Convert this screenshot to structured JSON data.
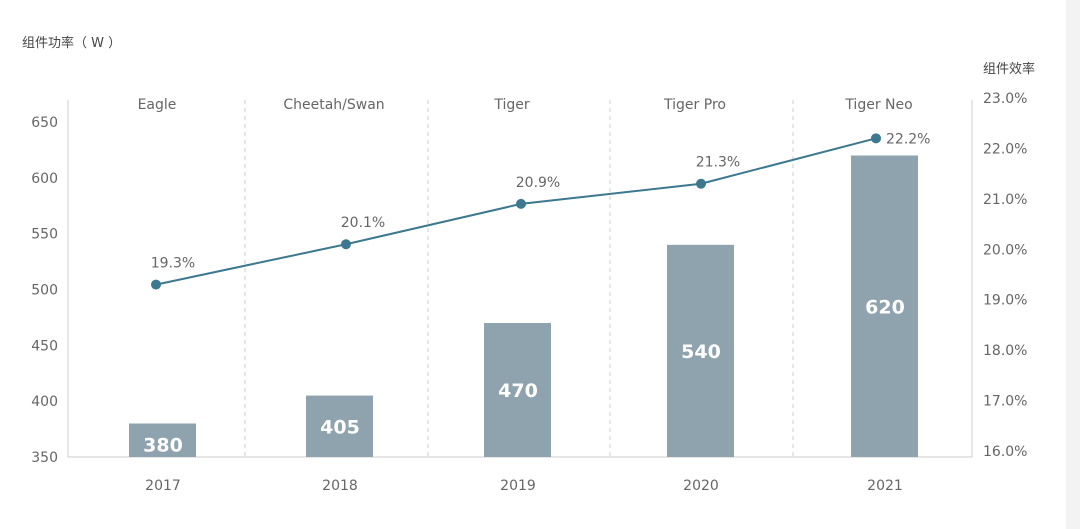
{
  "chart_data": {
    "type": "bar+line",
    "categories": [
      "2017",
      "2018",
      "2019",
      "2020",
      "2021"
    ],
    "product_labels": [
      "Eagle",
      "Cheetah/Swan",
      "Tiger",
      "Tiger Pro",
      "Tiger Neo"
    ],
    "series": [
      {
        "name": "组件功率（ W ）",
        "type": "bar",
        "axis": "left",
        "values": [
          380,
          405,
          470,
          540,
          620
        ],
        "value_labels": [
          "380",
          "405",
          "470",
          "540",
          "620"
        ],
        "color": "#8ea3ae"
      },
      {
        "name": "组件效率",
        "type": "line",
        "axis": "right",
        "values": [
          19.3,
          20.1,
          20.9,
          21.3,
          22.2
        ],
        "value_labels": [
          "19.3%",
          "20.1%",
          "20.9%",
          "21.3%",
          "22.2%"
        ],
        "color": "#3c7890"
      }
    ],
    "left_axis": {
      "title": "组件功率（ W ）",
      "range": [
        350,
        650
      ],
      "ticks": [
        "350",
        "400",
        "450",
        "500",
        "550",
        "600",
        "650"
      ]
    },
    "right_axis": {
      "title": "组件效率",
      "range": [
        16.0,
        23.0
      ],
      "ticks": [
        "16.0%",
        "17.0%",
        "18.0%",
        "19.0%",
        "20.0%",
        "21.0%",
        "22.0%",
        "23.0%"
      ]
    },
    "grid": false
  }
}
